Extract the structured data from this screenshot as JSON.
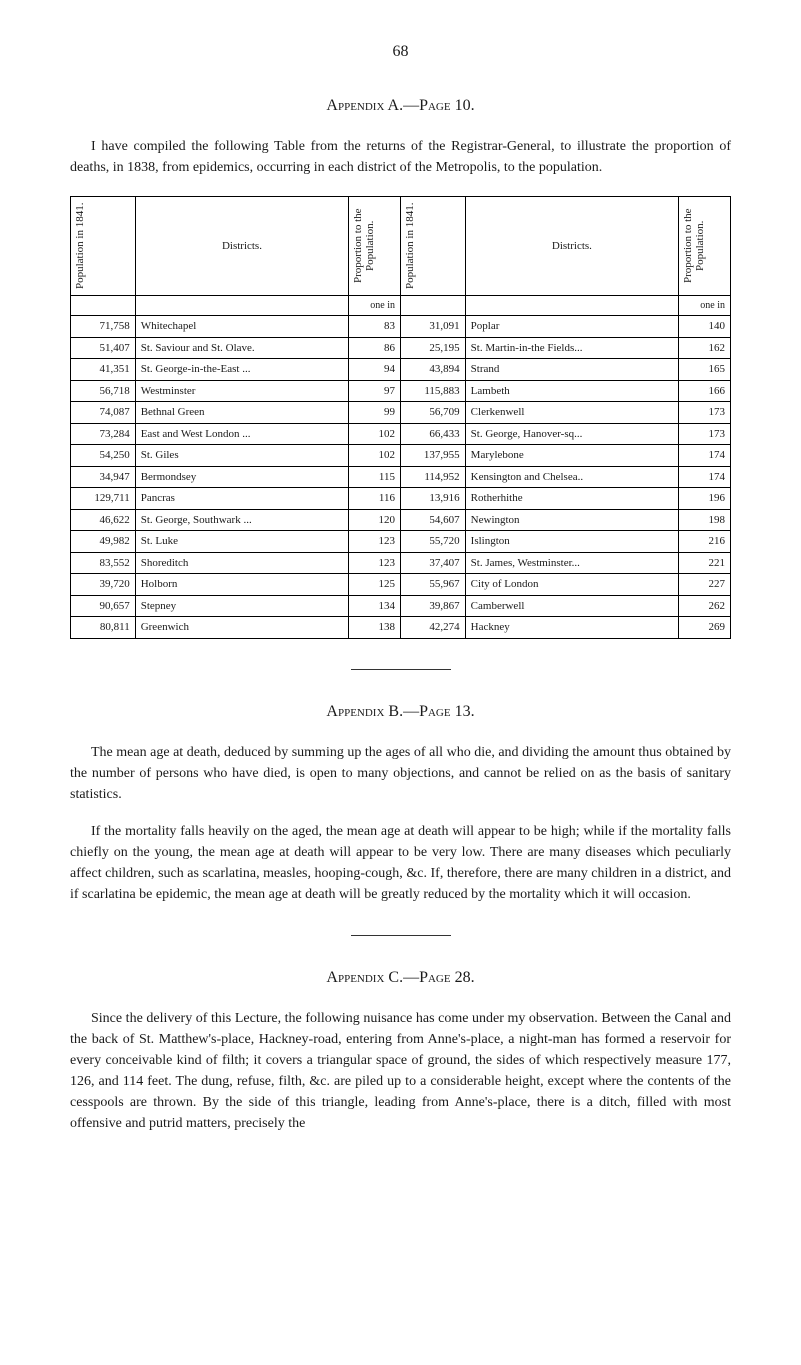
{
  "page_number": "68",
  "appendix_a": {
    "title": "Appendix A.—Page 10.",
    "intro": "I have compiled the following Table from the returns of the Registrar-General, to illustrate the proportion of deaths, in 1838, from epidemics, occurring in each district of the Metropolis, to the population.",
    "headers": {
      "population": "Population in 1841.",
      "districts": "Districts.",
      "proportion": "Proportion to the Population."
    },
    "one_in": "one in",
    "left_rows": [
      {
        "pop": "71,758",
        "district": "Whitechapel",
        "prop": "83"
      },
      {
        "pop": "51,407",
        "district": "St. Saviour and St. Olave.",
        "prop": "86"
      },
      {
        "pop": "41,351",
        "district": "St. George-in-the-East ...",
        "prop": "94"
      },
      {
        "pop": "56,718",
        "district": "Westminster",
        "prop": "97"
      },
      {
        "pop": "74,087",
        "district": "Bethnal Green",
        "prop": "99"
      },
      {
        "pop": "73,284",
        "district": "East and West London ...",
        "prop": "102"
      },
      {
        "pop": "54,250",
        "district": "St. Giles",
        "prop": "102"
      },
      {
        "pop": "34,947",
        "district": "Bermondsey",
        "prop": "115"
      },
      {
        "pop": "129,711",
        "district": "Pancras",
        "prop": "116"
      },
      {
        "pop": "46,622",
        "district": "St. George, Southwark ...",
        "prop": "120"
      },
      {
        "pop": "49,982",
        "district": "St. Luke",
        "prop": "123"
      },
      {
        "pop": "83,552",
        "district": "Shoreditch",
        "prop": "123"
      },
      {
        "pop": "39,720",
        "district": "Holborn",
        "prop": "125"
      },
      {
        "pop": "90,657",
        "district": "Stepney",
        "prop": "134"
      },
      {
        "pop": "80,811",
        "district": "Greenwich",
        "prop": "138"
      }
    ],
    "right_rows": [
      {
        "pop": "31,091",
        "district": "Poplar",
        "prop": "140"
      },
      {
        "pop": "25,195",
        "district": "St. Martin-in-the Fields...",
        "prop": "162"
      },
      {
        "pop": "43,894",
        "district": "Strand",
        "prop": "165"
      },
      {
        "pop": "115,883",
        "district": "Lambeth",
        "prop": "166"
      },
      {
        "pop": "56,709",
        "district": "Clerkenwell",
        "prop": "173"
      },
      {
        "pop": "66,433",
        "district": "St. George, Hanover-sq...",
        "prop": "173"
      },
      {
        "pop": "137,955",
        "district": "Marylebone",
        "prop": "174"
      },
      {
        "pop": "114,952",
        "district": "Kensington and Chelsea..",
        "prop": "174"
      },
      {
        "pop": "13,916",
        "district": "Rotherhithe",
        "prop": "196"
      },
      {
        "pop": "54,607",
        "district": "Newington",
        "prop": "198"
      },
      {
        "pop": "55,720",
        "district": "Islington",
        "prop": "216"
      },
      {
        "pop": "37,407",
        "district": "St. James, Westminster...",
        "prop": "221"
      },
      {
        "pop": "55,967",
        "district": "City of London",
        "prop": "227"
      },
      {
        "pop": "39,867",
        "district": "Camberwell",
        "prop": "262"
      },
      {
        "pop": "42,274",
        "district": "Hackney",
        "prop": "269"
      }
    ]
  },
  "appendix_b": {
    "title": "Appendix B.—Page 13.",
    "para1": "The mean age at death, deduced by summing up the ages of all who die, and dividing the amount thus obtained by the number of persons who have died, is open to many objections, and cannot be relied on as the basis of sanitary statistics.",
    "para2": "If the mortality falls heavily on the aged, the mean age at death will appear to be high; while if the mortality falls chiefly on the young, the mean age at death will appear to be very low. There are many diseases which peculiarly affect children, such as scarlatina, measles, hooping-cough, &c. If, therefore, there are many children in a district, and if scarlatina be epidemic, the mean age at death will be greatly reduced by the mortality which it will occasion."
  },
  "appendix_c": {
    "title": "Appendix C.—Page 28.",
    "para1": "Since the delivery of this Lecture, the following nuisance has come under my observation. Between the Canal and the back of St. Matthew's-place, Hackney-road, entering from Anne's-place, a night-man has formed a reservoir for every conceivable kind of filth; it covers a triangular space of ground, the sides of which respectively measure 177, 126, and 114 feet. The dung, refuse, filth, &c. are piled up to a considerable height, except where the contents of the cesspools are thrown. By the side of this triangle, leading from Anne's-place, there is a ditch, filled with most offensive and putrid matters, precisely the"
  },
  "styling": {
    "background_color": "#ffffff",
    "text_color": "#1a1a1a",
    "font_family": "Georgia, serif",
    "base_font_size": 14,
    "table_font_size": 11,
    "border_color": "#000000"
  }
}
